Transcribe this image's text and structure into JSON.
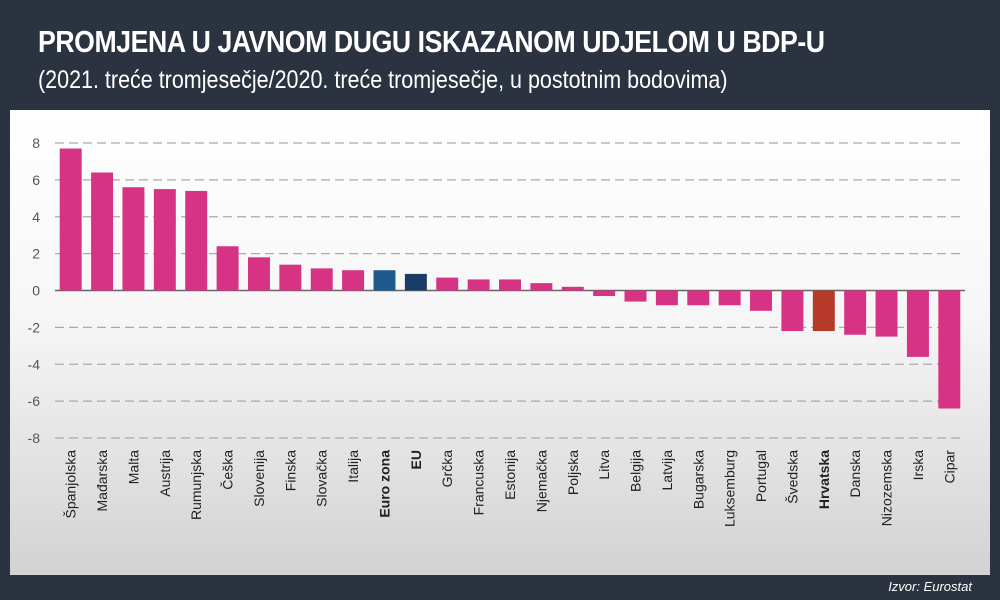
{
  "header": {
    "title": "PROMJENA U JAVNOM DUGU ISKAZANOM UDJELOM U BDP-U",
    "subtitle": "(2021. treće tromjesečje/2020. treće tromjesečje, u postotnim bodovima)"
  },
  "footer": {
    "source": "Izvor: Eurostat"
  },
  "colors": {
    "header_bg": "#2b3240",
    "bar_default": "#d63384",
    "bar_euro_zona": "#1e5b8c",
    "bar_eu": "#1a3c66",
    "bar_hrvatska": "#b53a2a",
    "grid": "#aaaaaa"
  },
  "chart_data": {
    "type": "bar",
    "categories": [
      "Španjolska",
      "Mađarska",
      "Malta",
      "Austrija",
      "Rumunjska",
      "Češka",
      "Slovenija",
      "Finska",
      "Slovačka",
      "Italija",
      "Euro zona",
      "EU",
      "Grčka",
      "Francuska",
      "Estonija",
      "Njemačka",
      "Poljska",
      "Litva",
      "Belgija",
      "Latvija",
      "Bugarska",
      "Luksemburg",
      "Portugal",
      "Švedska",
      "Hrvatska",
      "Danska",
      "Nizozemska",
      "Irska",
      "Cipar"
    ],
    "values": [
      7.7,
      6.4,
      5.6,
      5.5,
      5.4,
      2.4,
      1.8,
      1.4,
      1.2,
      1.1,
      1.1,
      0.9,
      0.7,
      0.6,
      0.6,
      0.4,
      0.2,
      -0.3,
      -0.6,
      -0.8,
      -0.8,
      -0.8,
      -1.1,
      -2.2,
      -2.2,
      -2.4,
      -2.5,
      -3.6,
      -6.4
    ],
    "highlight": {
      "Euro zona": "bar_euro_zona",
      "EU": "bar_eu",
      "Hrvatska": "bar_hrvatska"
    },
    "bold_categories": [
      "Euro zona",
      "EU",
      "Hrvatska"
    ],
    "yticks": [
      8,
      6,
      4,
      2,
      0,
      -2,
      -4,
      -6,
      -8
    ],
    "ylim": [
      -8,
      8
    ],
    "grid": true
  }
}
